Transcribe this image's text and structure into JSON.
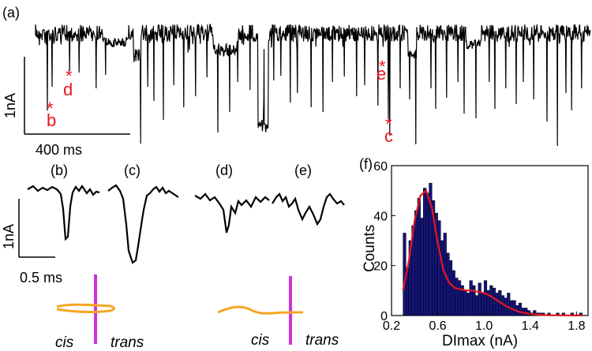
{
  "panel_labels": {
    "a": "(a)",
    "b": "(b)",
    "c": "(c)",
    "d": "(d)",
    "e": "(e)",
    "f": "(f)"
  },
  "trace": {
    "scale_y": "1nA",
    "scale_x": "400 ms",
    "markers": [
      {
        "star": "*",
        "letter": "b"
      },
      {
        "star": "*",
        "letter": "d"
      },
      {
        "star": "*",
        "letter": "e"
      },
      {
        "star": "*",
        "letter": "c"
      }
    ]
  },
  "events": {
    "scale_y": "1nA",
    "scale_x": "0.5 ms"
  },
  "schematic": {
    "left": {
      "cis": "cis",
      "trans": "trans"
    },
    "right": {
      "cis": "cis",
      "trans": "trans"
    },
    "pore_color": "#cc33dd",
    "dna_color": "#f5a623"
  },
  "colors": {
    "trace": "#000000",
    "marker": "#e8161c",
    "bar": "#14147a",
    "fit": "#e8161c"
  },
  "chart_data": {
    "type": "bar",
    "xlabel": "DImax (nA)",
    "ylabel": "Counts",
    "xlim": [
      0.2,
      1.9
    ],
    "ylim": [
      0,
      60
    ],
    "xticks": [
      "0.2",
      "0.6",
      "1.0",
      "1.4",
      "1.8"
    ],
    "xtick_values": [
      0.2,
      0.6,
      1.0,
      1.4,
      1.8
    ],
    "yticks": [
      "0",
      "20",
      "40",
      "60"
    ],
    "ytick_values": [
      0,
      20,
      40,
      60
    ],
    "bin_width": 0.025,
    "bins_start": 0.3,
    "values": [
      33,
      19,
      30,
      36,
      42,
      47,
      39,
      51,
      49,
      53,
      46,
      41,
      38,
      30,
      33,
      25,
      22,
      18,
      15,
      14,
      12,
      10,
      9,
      14,
      12,
      8,
      13,
      9,
      14,
      10,
      12,
      11,
      9,
      10,
      8,
      7,
      9,
      6,
      6,
      4,
      5,
      3,
      3,
      2,
      1,
      2,
      1,
      1,
      1,
      0,
      1,
      0,
      0,
      1,
      0,
      1,
      0,
      0,
      1,
      0,
      0,
      1,
      0
    ],
    "fit": {
      "x": [
        0.3,
        0.35,
        0.4,
        0.45,
        0.5,
        0.55,
        0.6,
        0.65,
        0.7,
        0.75,
        0.8,
        0.85,
        0.9,
        0.95,
        1.0,
        1.05,
        1.1,
        1.15,
        1.2,
        1.3,
        1.4,
        1.5,
        1.6,
        1.7,
        1.8,
        1.85
      ],
      "y": [
        10,
        22,
        38,
        48,
        50,
        43,
        29,
        18,
        13,
        11,
        10.5,
        10,
        10,
        9.5,
        9,
        8,
        6.5,
        5,
        3.5,
        1.5,
        0.6,
        0.2,
        0.1,
        0.05,
        0.02,
        0.01
      ]
    }
  }
}
